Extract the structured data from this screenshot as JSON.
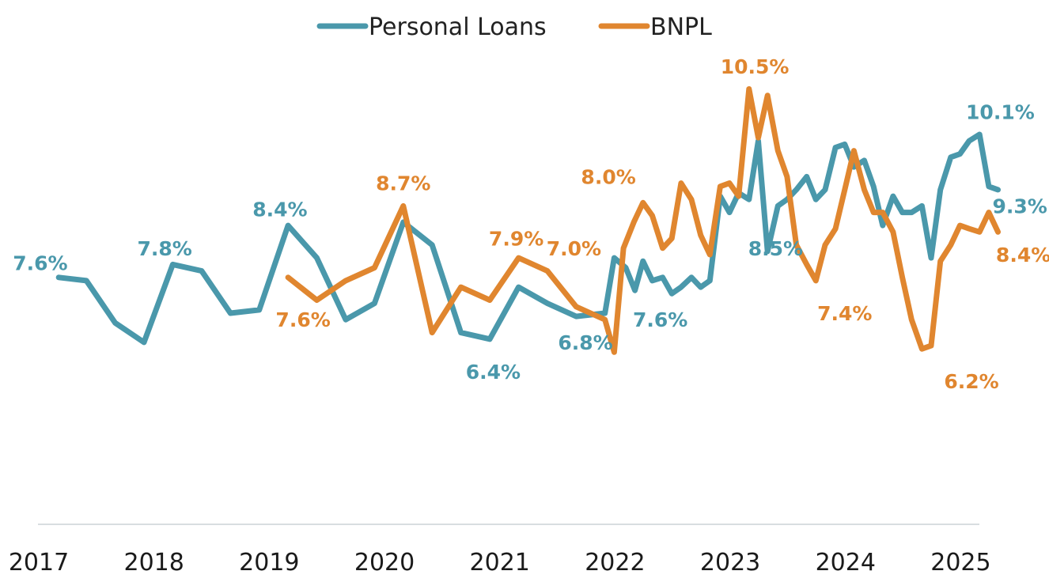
{
  "chart_data": {
    "type": "line",
    "legend_position": "top-center",
    "grid": false,
    "x_range": [
      2017,
      2025.45
    ],
    "y_range": [
      3.8,
      11.2
    ],
    "x_ticks": [
      "2017",
      "2018",
      "2019",
      "2020",
      "2021",
      "2022",
      "2023",
      "2024",
      "2025"
    ],
    "series": [
      {
        "name": "Personal Loans",
        "color": "#4A98AB",
        "points": [
          [
            2017.18,
            7.6
          ],
          [
            2017.42,
            7.55
          ],
          [
            2017.67,
            6.9
          ],
          [
            2017.92,
            6.6
          ],
          [
            2018.17,
            7.8
          ],
          [
            2018.42,
            7.7
          ],
          [
            2018.67,
            7.05
          ],
          [
            2018.92,
            7.1
          ],
          [
            2019.17,
            8.4
          ],
          [
            2019.42,
            7.9
          ],
          [
            2019.67,
            6.95
          ],
          [
            2019.92,
            7.2
          ],
          [
            2020.17,
            8.45
          ],
          [
            2020.42,
            8.1
          ],
          [
            2020.67,
            6.75
          ],
          [
            2020.92,
            6.65
          ],
          [
            2021.17,
            7.45
          ],
          [
            2021.42,
            7.2
          ],
          [
            2021.67,
            7.0
          ],
          [
            2021.92,
            7.05
          ],
          [
            2022.0,
            7.9
          ],
          [
            2022.1,
            7.75
          ],
          [
            2022.18,
            7.4
          ],
          [
            2022.25,
            7.85
          ],
          [
            2022.33,
            7.55
          ],
          [
            2022.42,
            7.6
          ],
          [
            2022.5,
            7.35
          ],
          [
            2022.58,
            7.45
          ],
          [
            2022.67,
            7.6
          ],
          [
            2022.75,
            7.45
          ],
          [
            2022.83,
            7.55
          ],
          [
            2022.92,
            8.85
          ],
          [
            2023.0,
            8.6
          ],
          [
            2023.08,
            8.9
          ],
          [
            2023.17,
            8.8
          ],
          [
            2023.25,
            9.7
          ],
          [
            2023.33,
            8.0
          ],
          [
            2023.42,
            8.7
          ],
          [
            2023.5,
            8.8
          ],
          [
            2023.58,
            8.95
          ],
          [
            2023.67,
            9.15
          ],
          [
            2023.75,
            8.8
          ],
          [
            2023.83,
            8.95
          ],
          [
            2023.92,
            9.6
          ],
          [
            2024.0,
            9.65
          ],
          [
            2024.08,
            9.3
          ],
          [
            2024.17,
            9.4
          ],
          [
            2024.25,
            9.0
          ],
          [
            2024.33,
            8.4
          ],
          [
            2024.42,
            8.85
          ],
          [
            2024.5,
            8.6
          ],
          [
            2024.58,
            8.6
          ],
          [
            2024.67,
            8.7
          ],
          [
            2024.75,
            7.9
          ],
          [
            2024.83,
            8.95
          ],
          [
            2024.92,
            9.45
          ],
          [
            2025.0,
            9.5
          ],
          [
            2025.08,
            9.7
          ],
          [
            2025.17,
            9.8
          ],
          [
            2025.25,
            9.0
          ],
          [
            2025.33,
            8.95
          ]
        ]
      },
      {
        "name": "BNPL",
        "color": "#E0862F",
        "points": [
          [
            2019.17,
            7.6
          ],
          [
            2019.42,
            7.25
          ],
          [
            2019.67,
            7.55
          ],
          [
            2019.92,
            7.75
          ],
          [
            2020.17,
            8.7
          ],
          [
            2020.42,
            6.75
          ],
          [
            2020.67,
            7.45
          ],
          [
            2020.92,
            7.25
          ],
          [
            2021.17,
            7.9
          ],
          [
            2021.42,
            7.7
          ],
          [
            2021.67,
            7.15
          ],
          [
            2021.92,
            6.95
          ],
          [
            2022.0,
            6.45
          ],
          [
            2022.08,
            8.05
          ],
          [
            2022.17,
            8.45
          ],
          [
            2022.25,
            8.75
          ],
          [
            2022.33,
            8.55
          ],
          [
            2022.42,
            8.05
          ],
          [
            2022.5,
            8.2
          ],
          [
            2022.58,
            9.05
          ],
          [
            2022.67,
            8.8
          ],
          [
            2022.75,
            8.25
          ],
          [
            2022.83,
            7.95
          ],
          [
            2022.92,
            9.0
          ],
          [
            2023.0,
            9.05
          ],
          [
            2023.08,
            8.85
          ],
          [
            2023.17,
            10.5
          ],
          [
            2023.25,
            9.75
          ],
          [
            2023.33,
            10.4
          ],
          [
            2023.42,
            9.55
          ],
          [
            2023.5,
            9.15
          ],
          [
            2023.58,
            8.1
          ],
          [
            2023.67,
            7.8
          ],
          [
            2023.75,
            7.55
          ],
          [
            2023.83,
            8.1
          ],
          [
            2023.92,
            8.35
          ],
          [
            2024.0,
            8.95
          ],
          [
            2024.08,
            9.55
          ],
          [
            2024.17,
            8.95
          ],
          [
            2024.25,
            8.6
          ],
          [
            2024.33,
            8.6
          ],
          [
            2024.42,
            8.3
          ],
          [
            2024.5,
            7.6
          ],
          [
            2024.58,
            6.95
          ],
          [
            2024.67,
            6.5
          ],
          [
            2024.75,
            6.55
          ],
          [
            2024.83,
            7.85
          ],
          [
            2024.92,
            8.1
          ],
          [
            2025.0,
            8.4
          ],
          [
            2025.08,
            8.35
          ],
          [
            2025.17,
            8.3
          ],
          [
            2025.25,
            8.6
          ],
          [
            2025.33,
            8.3
          ]
        ]
      }
    ],
    "data_labels": [
      {
        "text": "7.6%",
        "series": "Personal Loans",
        "x": 2017.02,
        "y": 7.82
      },
      {
        "text": "7.8%",
        "series": "Personal Loans",
        "x": 2018.1,
        "y": 8.05
      },
      {
        "text": "8.4%",
        "series": "Personal Loans",
        "x": 2019.1,
        "y": 8.65
      },
      {
        "text": "6.4%",
        "series": "Personal Loans",
        "x": 2020.95,
        "y": 6.15
      },
      {
        "text": "6.8%",
        "series": "Personal Loans",
        "x": 2021.75,
        "y": 6.6
      },
      {
        "text": "7.6%",
        "series": "Personal Loans",
        "x": 2022.4,
        "y": 6.95
      },
      {
        "text": "8.5%",
        "series": "Personal Loans",
        "x": 2023.4,
        "y": 8.05
      },
      {
        "text": "10.1%",
        "series": "Personal Loans",
        "x": 2025.35,
        "y": 10.15
      },
      {
        "text": "9.3%",
        "series": "Personal Loans",
        "x": 2025.52,
        "y": 8.7
      },
      {
        "text": "7.6%",
        "series": "BNPL",
        "x": 2019.3,
        "y": 6.95
      },
      {
        "text": "8.7%",
        "series": "BNPL",
        "x": 2020.17,
        "y": 9.05
      },
      {
        "text": "7.9%",
        "series": "BNPL",
        "x": 2021.15,
        "y": 8.2
      },
      {
        "text": "7.0%",
        "series": "BNPL",
        "x": 2021.65,
        "y": 8.05
      },
      {
        "text": "8.0%",
        "series": "BNPL",
        "x": 2021.95,
        "y": 9.15
      },
      {
        "text": "10.5%",
        "series": "BNPL",
        "x": 2023.22,
        "y": 10.85
      },
      {
        "text": "7.4%",
        "series": "BNPL",
        "x": 2024.0,
        "y": 7.05
      },
      {
        "text": "6.2%",
        "series": "BNPL",
        "x": 2025.1,
        "y": 6.0
      },
      {
        "text": "8.4%",
        "series": "BNPL",
        "x": 2025.55,
        "y": 7.95
      }
    ]
  }
}
